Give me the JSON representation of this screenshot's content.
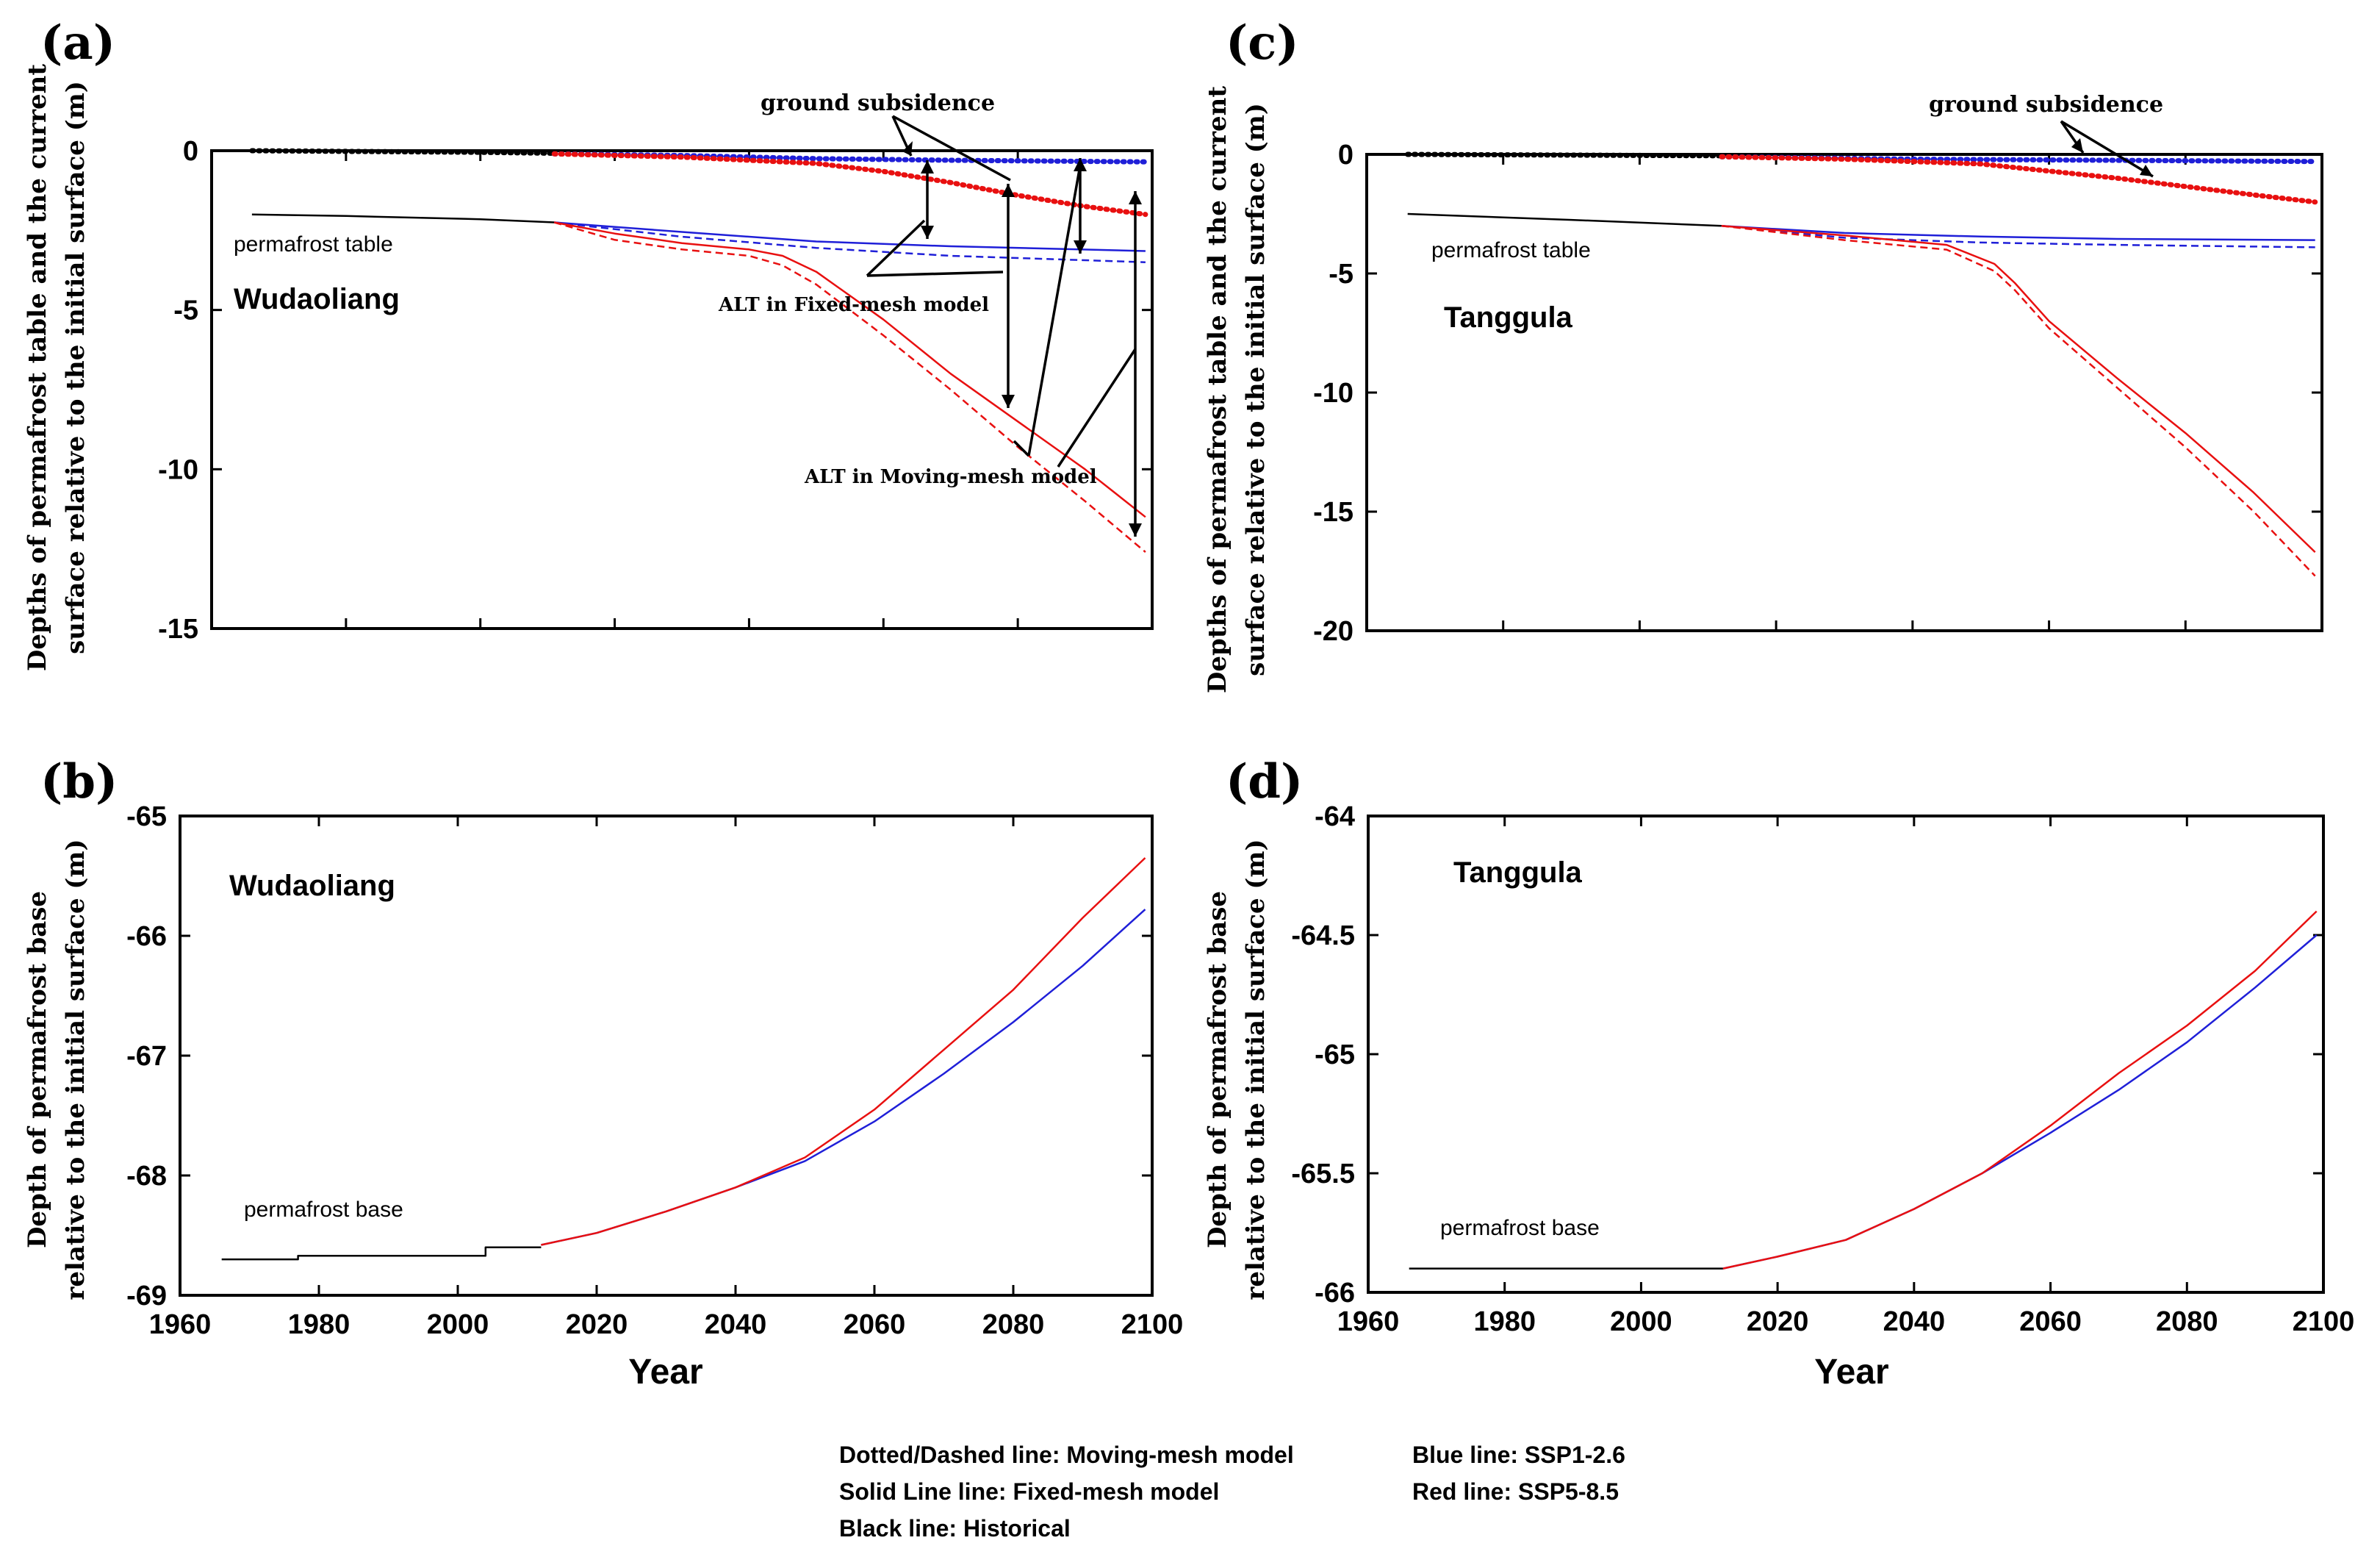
{
  "colors": {
    "ssp126": "#1f1fd8",
    "ssp585": "#e81010",
    "historical": "#000000"
  },
  "legend": {
    "line1": "Dotted/Dashed line: Moving-mesh model",
    "line2": "Solid Line line: Fixed-mesh model",
    "line3": "Black line: Historical",
    "line4": "Blue line: SSP1-2.6",
    "line5": "Red line: SSP5-8.5"
  },
  "chart_data": [
    {
      "id": "a",
      "type": "line",
      "panel_label": "(a)",
      "site": "Wudaoliang",
      "ylabel_1": "Depths of permafrost table and the current",
      "ylabel_2": "surface relative to the initial surface (m)",
      "xlabel": "",
      "xlim": [
        1960,
        2100
      ],
      "ylim": [
        -15,
        0
      ],
      "xticks": [],
      "yticks": [
        0,
        -5,
        -10,
        -15
      ],
      "yticklabels": [
        "0",
        "-5",
        "-10",
        "-15"
      ],
      "annotations": {
        "ground_subsidence": "ground subsidence",
        "permafrost_table": "permafrost table",
        "alt_fixed": "ALT in Fixed-mesh model",
        "alt_moving": "ALT in Moving-mesh model"
      },
      "series": [
        {
          "key": "hist_surface",
          "color": "historical",
          "style": "dotted",
          "x": [
            1966,
            1980,
            2000,
            2011
          ],
          "y": [
            0,
            -0.02,
            -0.05,
            -0.08
          ]
        },
        {
          "key": "hist_table",
          "color": "historical",
          "style": "solid",
          "x": [
            1966,
            1980,
            2000,
            2011
          ],
          "y": [
            -2.0,
            -2.05,
            -2.15,
            -2.25
          ]
        },
        {
          "key": "ssp126_surface",
          "color": "ssp126",
          "style": "dotted",
          "x": [
            2011,
            2030,
            2050,
            2070,
            2099
          ],
          "y": [
            -0.1,
            -0.15,
            -0.25,
            -0.3,
            -0.35
          ]
        },
        {
          "key": "ssp585_surface",
          "color": "ssp585",
          "style": "dotted",
          "x": [
            2011,
            2030,
            2050,
            2060,
            2070,
            2080,
            2090,
            2099
          ],
          "y": [
            -0.1,
            -0.2,
            -0.4,
            -0.65,
            -1.0,
            -1.4,
            -1.75,
            -2.0
          ]
        },
        {
          "key": "ssp126_table_fixed",
          "color": "ssp126",
          "style": "solid",
          "x": [
            2011,
            2030,
            2050,
            2070,
            2099
          ],
          "y": [
            -2.25,
            -2.55,
            -2.85,
            -3.0,
            -3.15
          ]
        },
        {
          "key": "ssp126_table_moving",
          "color": "ssp126",
          "style": "dashed",
          "x": [
            2011,
            2030,
            2050,
            2070,
            2099
          ],
          "y": [
            -2.25,
            -2.7,
            -3.05,
            -3.3,
            -3.5
          ]
        },
        {
          "key": "ssp585_table_fixed",
          "color": "ssp585",
          "style": "solid",
          "x": [
            2011,
            2020,
            2030,
            2040,
            2045,
            2050,
            2060,
            2070,
            2080,
            2090,
            2099
          ],
          "y": [
            -2.25,
            -2.6,
            -2.9,
            -3.1,
            -3.3,
            -3.8,
            -5.3,
            -7.0,
            -8.5,
            -10.0,
            -11.5
          ]
        },
        {
          "key": "ssp585_table_moving",
          "color": "ssp585",
          "style": "dashed",
          "x": [
            2011,
            2020,
            2030,
            2040,
            2045,
            2050,
            2060,
            2070,
            2080,
            2090,
            2099
          ],
          "y": [
            -2.25,
            -2.8,
            -3.1,
            -3.3,
            -3.6,
            -4.2,
            -5.8,
            -7.5,
            -9.3,
            -11.0,
            -12.6
          ]
        }
      ]
    },
    {
      "id": "b",
      "type": "line",
      "panel_label": "(b)",
      "site": "Wudaoliang",
      "ylabel_1": "Depth of permafrost base",
      "ylabel_2": "relative to the initial surface (m)",
      "xlabel": "Year",
      "xlim": [
        1960,
        2100
      ],
      "ylim": [
        -69,
        -65
      ],
      "xticks": [
        1960,
        1980,
        2000,
        2020,
        2040,
        2060,
        2080,
        2100
      ],
      "xticklabels": [
        "1960",
        "1980",
        "2000",
        "2020",
        "2040",
        "2060",
        "2080",
        "2100"
      ],
      "yticks": [
        -65,
        -66,
        -67,
        -68,
        -69
      ],
      "yticklabels": [
        "-65",
        "-66",
        "-67",
        "-68",
        "-69"
      ],
      "annotations": {
        "permafrost_base": "permafrost base"
      },
      "series": [
        {
          "key": "hist_base",
          "color": "historical",
          "style": "solid",
          "x": [
            1966,
            1977,
            1977,
            2004,
            2004,
            2012
          ],
          "y": [
            -68.7,
            -68.7,
            -68.67,
            -68.67,
            -68.6,
            -68.6
          ]
        },
        {
          "key": "ssp126_base",
          "color": "ssp126",
          "style": "solid",
          "x": [
            2012,
            2020,
            2030,
            2040,
            2050,
            2060,
            2070,
            2080,
            2090,
            2099
          ],
          "y": [
            -68.58,
            -68.48,
            -68.3,
            -68.1,
            -67.88,
            -67.55,
            -67.15,
            -66.72,
            -66.25,
            -65.78
          ]
        },
        {
          "key": "ssp585_base",
          "color": "ssp585",
          "style": "solid",
          "x": [
            2012,
            2020,
            2030,
            2040,
            2050,
            2060,
            2070,
            2080,
            2090,
            2099
          ],
          "y": [
            -68.58,
            -68.48,
            -68.3,
            -68.1,
            -67.85,
            -67.45,
            -66.95,
            -66.45,
            -65.85,
            -65.35
          ]
        }
      ]
    },
    {
      "id": "c",
      "type": "line",
      "panel_label": "(c)",
      "site": "Tanggula",
      "ylabel_1": "Depths of permafrost table and the current",
      "ylabel_2": "surface relative to the initial surface (m)",
      "xlabel": "",
      "xlim": [
        1960,
        2100
      ],
      "ylim": [
        -20,
        0
      ],
      "xticks": [],
      "yticks": [
        0,
        -5,
        -10,
        -15,
        -20
      ],
      "yticklabels": [
        "0",
        "-5",
        "-10",
        "-15",
        "-20"
      ],
      "annotations": {
        "ground_subsidence": "ground subsidence",
        "permafrost_table": "permafrost table"
      },
      "series": [
        {
          "key": "hist_surface",
          "color": "historical",
          "style": "dotted",
          "x": [
            1966,
            1990,
            2012
          ],
          "y": [
            0,
            -0.03,
            -0.06
          ]
        },
        {
          "key": "hist_table",
          "color": "historical",
          "style": "solid",
          "x": [
            1966,
            1990,
            2012
          ],
          "y": [
            -2.5,
            -2.75,
            -3.0
          ]
        },
        {
          "key": "ssp126_surface",
          "color": "ssp126",
          "style": "dotted",
          "x": [
            2012,
            2040,
            2070,
            2099
          ],
          "y": [
            -0.1,
            -0.2,
            -0.25,
            -0.3
          ]
        },
        {
          "key": "ssp585_surface",
          "color": "ssp585",
          "style": "dotted",
          "x": [
            2012,
            2030,
            2050,
            2060,
            2070,
            2080,
            2090,
            2099
          ],
          "y": [
            -0.1,
            -0.2,
            -0.4,
            -0.7,
            -1.0,
            -1.35,
            -1.7,
            -2.0
          ]
        },
        {
          "key": "ssp126_table_fixed",
          "color": "ssp126",
          "style": "solid",
          "x": [
            2012,
            2030,
            2050,
            2070,
            2099
          ],
          "y": [
            -3.0,
            -3.3,
            -3.45,
            -3.55,
            -3.6
          ]
        },
        {
          "key": "ssp126_table_moving",
          "color": "ssp126",
          "style": "dashed",
          "x": [
            2012,
            2030,
            2050,
            2070,
            2099
          ],
          "y": [
            -3.0,
            -3.5,
            -3.7,
            -3.8,
            -3.9
          ]
        },
        {
          "key": "ssp585_table_fixed",
          "color": "ssp585",
          "style": "solid",
          "x": [
            2012,
            2030,
            2045,
            2052,
            2055,
            2060,
            2070,
            2080,
            2090,
            2099
          ],
          "y": [
            -3.0,
            -3.4,
            -3.8,
            -4.6,
            -5.4,
            -7.0,
            -9.4,
            -11.7,
            -14.2,
            -16.7
          ]
        },
        {
          "key": "ssp585_table_moving",
          "color": "ssp585",
          "style": "dashed",
          "x": [
            2012,
            2030,
            2045,
            2052,
            2055,
            2060,
            2070,
            2080,
            2090,
            2099
          ],
          "y": [
            -3.0,
            -3.6,
            -4.0,
            -4.9,
            -5.7,
            -7.3,
            -9.8,
            -12.3,
            -15.0,
            -17.7
          ]
        }
      ]
    },
    {
      "id": "d",
      "type": "line",
      "panel_label": "(d)",
      "site": "Tanggula",
      "ylabel_1": "Depth of permafrost base",
      "ylabel_2": "relative to the initial surface (m)",
      "xlabel": "Year",
      "xlim": [
        1960,
        2100
      ],
      "ylim": [
        -66,
        -64
      ],
      "xticks": [
        1960,
        1980,
        2000,
        2020,
        2040,
        2060,
        2080,
        2100
      ],
      "xticklabels": [
        "1960",
        "1980",
        "2000",
        "2020",
        "2040",
        "2060",
        "2080",
        "2100"
      ],
      "yticks": [
        -64,
        -64.5,
        -65,
        -65.5,
        -66
      ],
      "yticklabels": [
        "-64",
        "-64.5",
        "-65",
        "-65.5",
        "-66"
      ],
      "annotations": {
        "permafrost_base": "permafrost base"
      },
      "series": [
        {
          "key": "hist_base",
          "color": "historical",
          "style": "solid",
          "x": [
            1966,
            2012
          ],
          "y": [
            -65.9,
            -65.9
          ]
        },
        {
          "key": "ssp126_base",
          "color": "ssp126",
          "style": "solid",
          "x": [
            2012,
            2020,
            2030,
            2040,
            2050,
            2060,
            2070,
            2080,
            2090,
            2099
          ],
          "y": [
            -65.9,
            -65.85,
            -65.78,
            -65.65,
            -65.5,
            -65.33,
            -65.15,
            -64.95,
            -64.72,
            -64.5
          ]
        },
        {
          "key": "ssp585_base",
          "color": "ssp585",
          "style": "solid",
          "x": [
            2012,
            2020,
            2030,
            2040,
            2050,
            2060,
            2070,
            2080,
            2090,
            2099
          ],
          "y": [
            -65.9,
            -65.85,
            -65.78,
            -65.65,
            -65.5,
            -65.3,
            -65.08,
            -64.88,
            -64.65,
            -64.4
          ]
        }
      ]
    }
  ]
}
